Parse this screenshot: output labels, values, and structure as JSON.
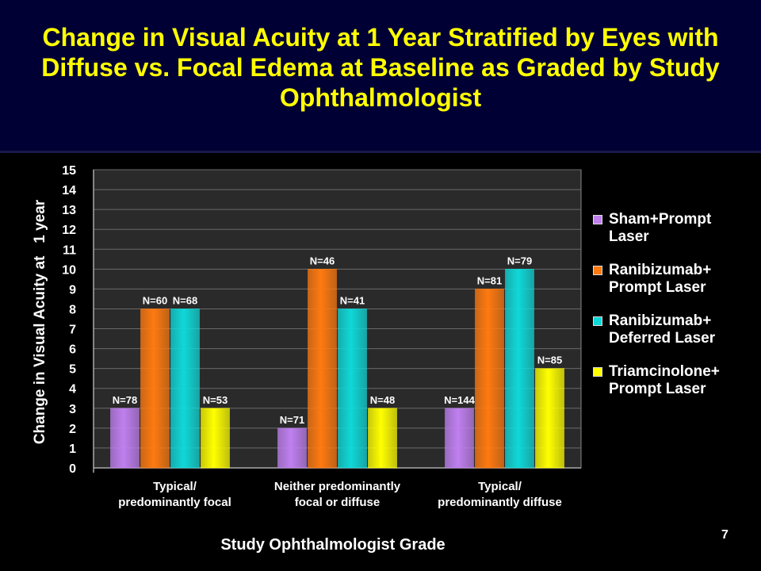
{
  "slide": {
    "title": "Change in Visual Acuity at 1 Year Stratified by Eyes with Diffuse vs. Focal Edema at Baseline as Graded by Study Ophthalmologist",
    "page_number": "7"
  },
  "colors": {
    "title": "#ffff00",
    "title_band": "#000035",
    "plot_background": "#2a2a2a",
    "grid": "#6a6a6a"
  },
  "chart_data": {
    "type": "bar",
    "ylabel": "Change in Visual Acuity at   1 year",
    "xlabel": "Study Ophthalmologist Grade",
    "ylim": [
      0,
      15
    ],
    "y_ticks": [
      0,
      1,
      2,
      3,
      4,
      5,
      6,
      7,
      8,
      9,
      10,
      11,
      12,
      13,
      14,
      15
    ],
    "grid": true,
    "legend_position": "right",
    "categories": [
      [
        "Typical/",
        "predominantly focal"
      ],
      [
        "Neither predominantly",
        "focal or diffuse"
      ],
      [
        "Typical/",
        "predominantly diffuse"
      ]
    ],
    "series": [
      {
        "name": "Sham+Prompt Laser",
        "legend_lines": [
          "Sham+Prompt",
          "Laser"
        ],
        "color": "#c080f0",
        "values": [
          3,
          2,
          3
        ],
        "labels": [
          "N=78",
          "N=71",
          "N=144"
        ]
      },
      {
        "name": "Ranibizumab+ Prompt Laser",
        "legend_lines": [
          "Ranibizumab+",
          "Prompt Laser"
        ],
        "color": "#ff7a10",
        "values": [
          8,
          10,
          9
        ],
        "labels": [
          "N=60",
          "N=46",
          "N=81"
        ]
      },
      {
        "name": "Ranibizumab+ Deferred Laser",
        "legend_lines": [
          "Ranibizumab+",
          "Deferred Laser"
        ],
        "color": "#10d8d8",
        "values": [
          8,
          8,
          10
        ],
        "labels": [
          "N=68",
          "N=41",
          "N=79"
        ]
      },
      {
        "name": "Triamcinolone+ Prompt Laser",
        "legend_lines": [
          "Triamcinolone+",
          "Prompt Laser"
        ],
        "color": "#ffff00",
        "values": [
          3,
          3,
          5
        ],
        "labels": [
          "N=53",
          "N=48",
          "N=85"
        ]
      }
    ]
  }
}
